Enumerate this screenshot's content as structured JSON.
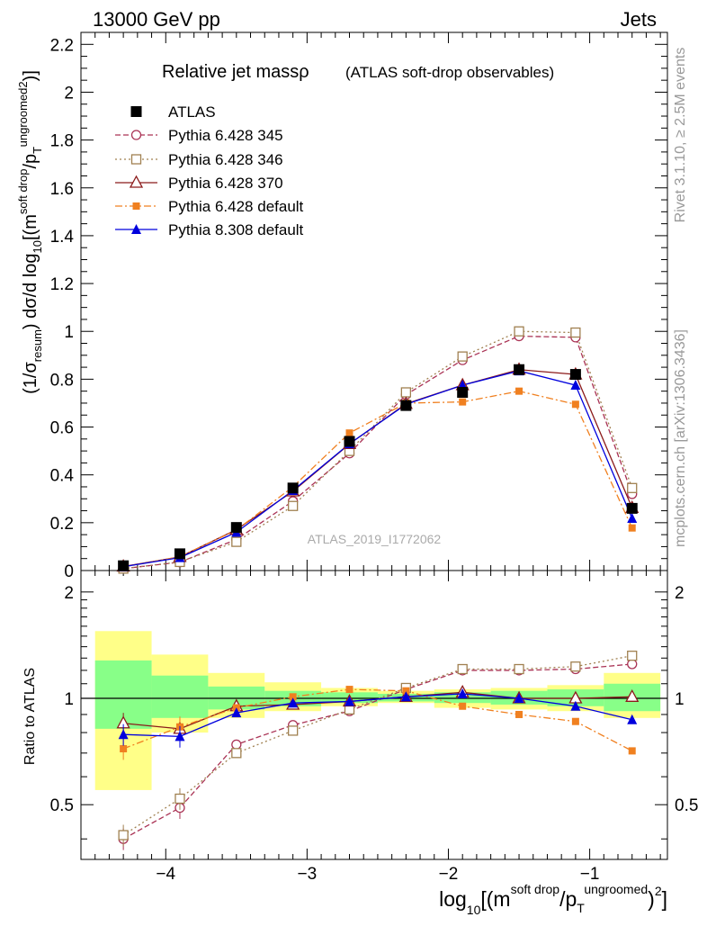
{
  "header": {
    "left": "13000 GeV pp",
    "right": "Jets"
  },
  "side": {
    "rivet": "Rivet 3.1.10, ≥ 2.5M events",
    "mcplots": "mcplots.cern.ch [arXiv:1306.3436]"
  },
  "chart_data": [
    {
      "type": "scatter",
      "title": "Relative jet massρ",
      "subtitle": "(ATLAS soft-drop observables)",
      "analysis_id": "ATLAS_2019_I1772062",
      "ylabel": {
        "pre": "(1/σ",
        "resum": "resum",
        "mid": ") dσ/d log",
        "ten": "10",
        "br": "[(m",
        "sd": "soft drop",
        "slash": "/p",
        "T": "T",
        "ungr": "ungroomed",
        "two": "2",
        "close": ")",
        "end": "]"
      },
      "ylim": [
        0,
        2.25
      ],
      "yticks": [
        "0",
        "0.2",
        "0.4",
        "0.6",
        "0.8",
        "1",
        "1.2",
        "1.4",
        "1.6",
        "1.8",
        "2",
        "2.2"
      ],
      "legend_position": "top-left",
      "x": [
        -4.3,
        -3.9,
        -3.5,
        -3.1,
        -2.7,
        -2.3,
        -1.9,
        -1.5,
        -1.1,
        -0.7
      ],
      "bin_edges": [
        -4.5,
        -4.1,
        -3.7,
        -3.3,
        -2.9,
        -2.5,
        -2.1,
        -1.7,
        -1.3,
        -0.9,
        -0.5
      ],
      "series": [
        {
          "name": "ATLAS",
          "color": "#000000",
          "marker": "square",
          "values": [
            0.02,
            0.07,
            0.18,
            0.345,
            0.54,
            0.69,
            0.745,
            0.84,
            0.82,
            0.26
          ]
        },
        {
          "name": "Pythia 6.428 345",
          "color": "#aa3355",
          "marker": "open-circle",
          "dash": "6,3",
          "values": [
            0.008,
            0.035,
            0.13,
            0.29,
            0.49,
            0.735,
            0.88,
            0.98,
            0.975,
            0.32
          ]
        },
        {
          "name": "Pythia 6.428 346",
          "color": "#a08050",
          "marker": "open-square",
          "dash": "2,3",
          "values": [
            0.008,
            0.036,
            0.12,
            0.27,
            0.5,
            0.745,
            0.895,
            1.0,
            0.995,
            0.345
          ]
        },
        {
          "name": "Pythia 6.428 370",
          "color": "#8b1a1a",
          "marker": "open-triangle",
          "dash": "",
          "values": [
            0.017,
            0.057,
            0.171,
            0.331,
            0.529,
            0.697,
            0.775,
            0.84,
            0.82,
            0.262
          ]
        },
        {
          "name": "Pythia 6.428 default",
          "color": "#f08020",
          "marker": "small-square",
          "dash": "8,3,2,3",
          "values": [
            0.015,
            0.058,
            0.169,
            0.35,
            0.575,
            0.7,
            0.705,
            0.75,
            0.695,
            0.178
          ]
        },
        {
          "name": "Pythia 8.308 default",
          "color": "#0000dd",
          "marker": "triangle",
          "dash": "",
          "values": [
            0.016,
            0.054,
            0.16,
            0.335,
            0.53,
            0.695,
            0.775,
            0.835,
            0.775,
            0.218
          ]
        }
      ]
    },
    {
      "type": "scatter",
      "ylabel": "Ratio to ATLAS",
      "ylim": [
        0.35,
        2.3
      ],
      "yscale": "log",
      "yticks": [
        "0.5",
        "1",
        "2"
      ],
      "xlabel": {
        "log": "log",
        "ten": "10",
        "br": "[(m",
        "sd": "soft drop",
        "slash": "/p",
        "T": "T",
        "ungr": "ungroomed",
        "close": ")",
        "two": "2",
        "end": "]"
      },
      "xlim": [
        -4.6,
        -0.45
      ],
      "xticks": [
        "−4",
        "−3",
        "−2",
        "−1"
      ],
      "band_inner": [
        [
          0.82,
          1.28
        ],
        [
          0.88,
          1.16
        ],
        [
          0.93,
          1.08
        ],
        [
          0.95,
          1.05
        ],
        [
          0.97,
          1.04
        ],
        [
          0.98,
          1.03
        ],
        [
          0.97,
          1.04
        ],
        [
          0.96,
          1.05
        ],
        [
          0.95,
          1.06
        ],
        [
          0.92,
          1.1
        ]
      ],
      "band_outer": [
        [
          0.55,
          1.55
        ],
        [
          0.8,
          1.33
        ],
        [
          0.88,
          1.18
        ],
        [
          0.92,
          1.11
        ],
        [
          0.95,
          1.07
        ],
        [
          0.97,
          1.05
        ],
        [
          0.94,
          1.06
        ],
        [
          0.93,
          1.07
        ],
        [
          0.92,
          1.09
        ],
        [
          0.88,
          1.18
        ]
      ],
      "series": [
        {
          "name": "Pythia 6.428 345",
          "values": [
            0.4,
            0.49,
            0.74,
            0.84,
            0.92,
            1.06,
            1.2,
            1.2,
            1.21,
            1.25
          ]
        },
        {
          "name": "Pythia 6.428 346",
          "values": [
            0.41,
            0.52,
            0.7,
            0.81,
            0.93,
            1.07,
            1.21,
            1.21,
            1.23,
            1.32
          ]
        },
        {
          "name": "Pythia 6.428 370",
          "values": [
            0.85,
            0.82,
            0.95,
            0.96,
            0.98,
            1.01,
            1.04,
            1.0,
            1.0,
            1.01
          ]
        },
        {
          "name": "Pythia 6.428 default",
          "values": [
            0.72,
            0.83,
            0.94,
            1.01,
            1.06,
            1.05,
            0.95,
            0.9,
            0.86,
            0.71
          ]
        },
        {
          "name": "Pythia 8.308 default",
          "values": [
            0.79,
            0.78,
            0.91,
            0.97,
            0.98,
            1.01,
            1.03,
            1.0,
            0.95,
            0.87
          ]
        }
      ]
    }
  ]
}
